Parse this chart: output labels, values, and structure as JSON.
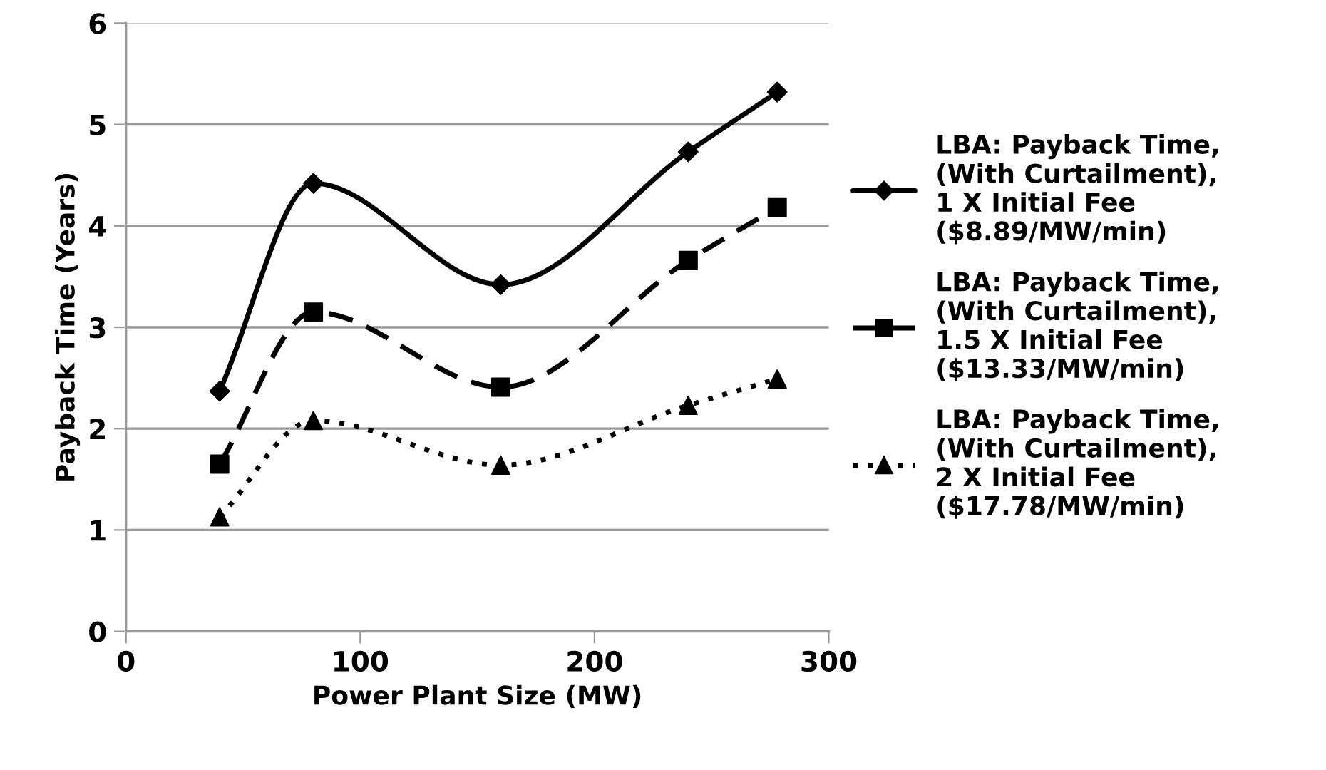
{
  "chart_data": {
    "type": "line",
    "xlabel": "Power Plant Size (MW)",
    "ylabel": "Payback Time (Years)",
    "xlim": [
      0,
      300
    ],
    "xticks": [
      0,
      100,
      200,
      300
    ],
    "ylim": [
      0,
      6
    ],
    "yticks": [
      0,
      1,
      2,
      3,
      4,
      5,
      6
    ],
    "grid": "y",
    "legend": "right",
    "series": [
      {
        "name": "LBA: Payback Time,\n(With Curtailment),\n1 X Initial Fee\n($8.89/MW/min)",
        "color": "#000000",
        "marker": "diamond",
        "line_style": "solid",
        "x": [
          40,
          80,
          160,
          240,
          278
        ],
        "values": [
          2.37,
          4.42,
          3.42,
          4.73,
          5.32
        ]
      },
      {
        "name": "LBA: Payback Time,\n(With Curtailment),\n1.5 X Initial Fee\n($13.33/MW/min)",
        "color": "#000000",
        "marker": "square",
        "line_style": "dashed",
        "x": [
          40,
          80,
          160,
          240,
          278
        ],
        "values": [
          1.65,
          3.15,
          2.41,
          3.66,
          4.18
        ]
      },
      {
        "name": "LBA: Payback Time,\n(With Curtailment),\n2 X Initial Fee\n($17.78/MW/min)",
        "color": "#000000",
        "marker": "triangle",
        "line_style": "dotted",
        "x": [
          40,
          80,
          160,
          240,
          278
        ],
        "values": [
          1.13,
          2.08,
          1.64,
          2.23,
          2.49
        ]
      }
    ]
  }
}
